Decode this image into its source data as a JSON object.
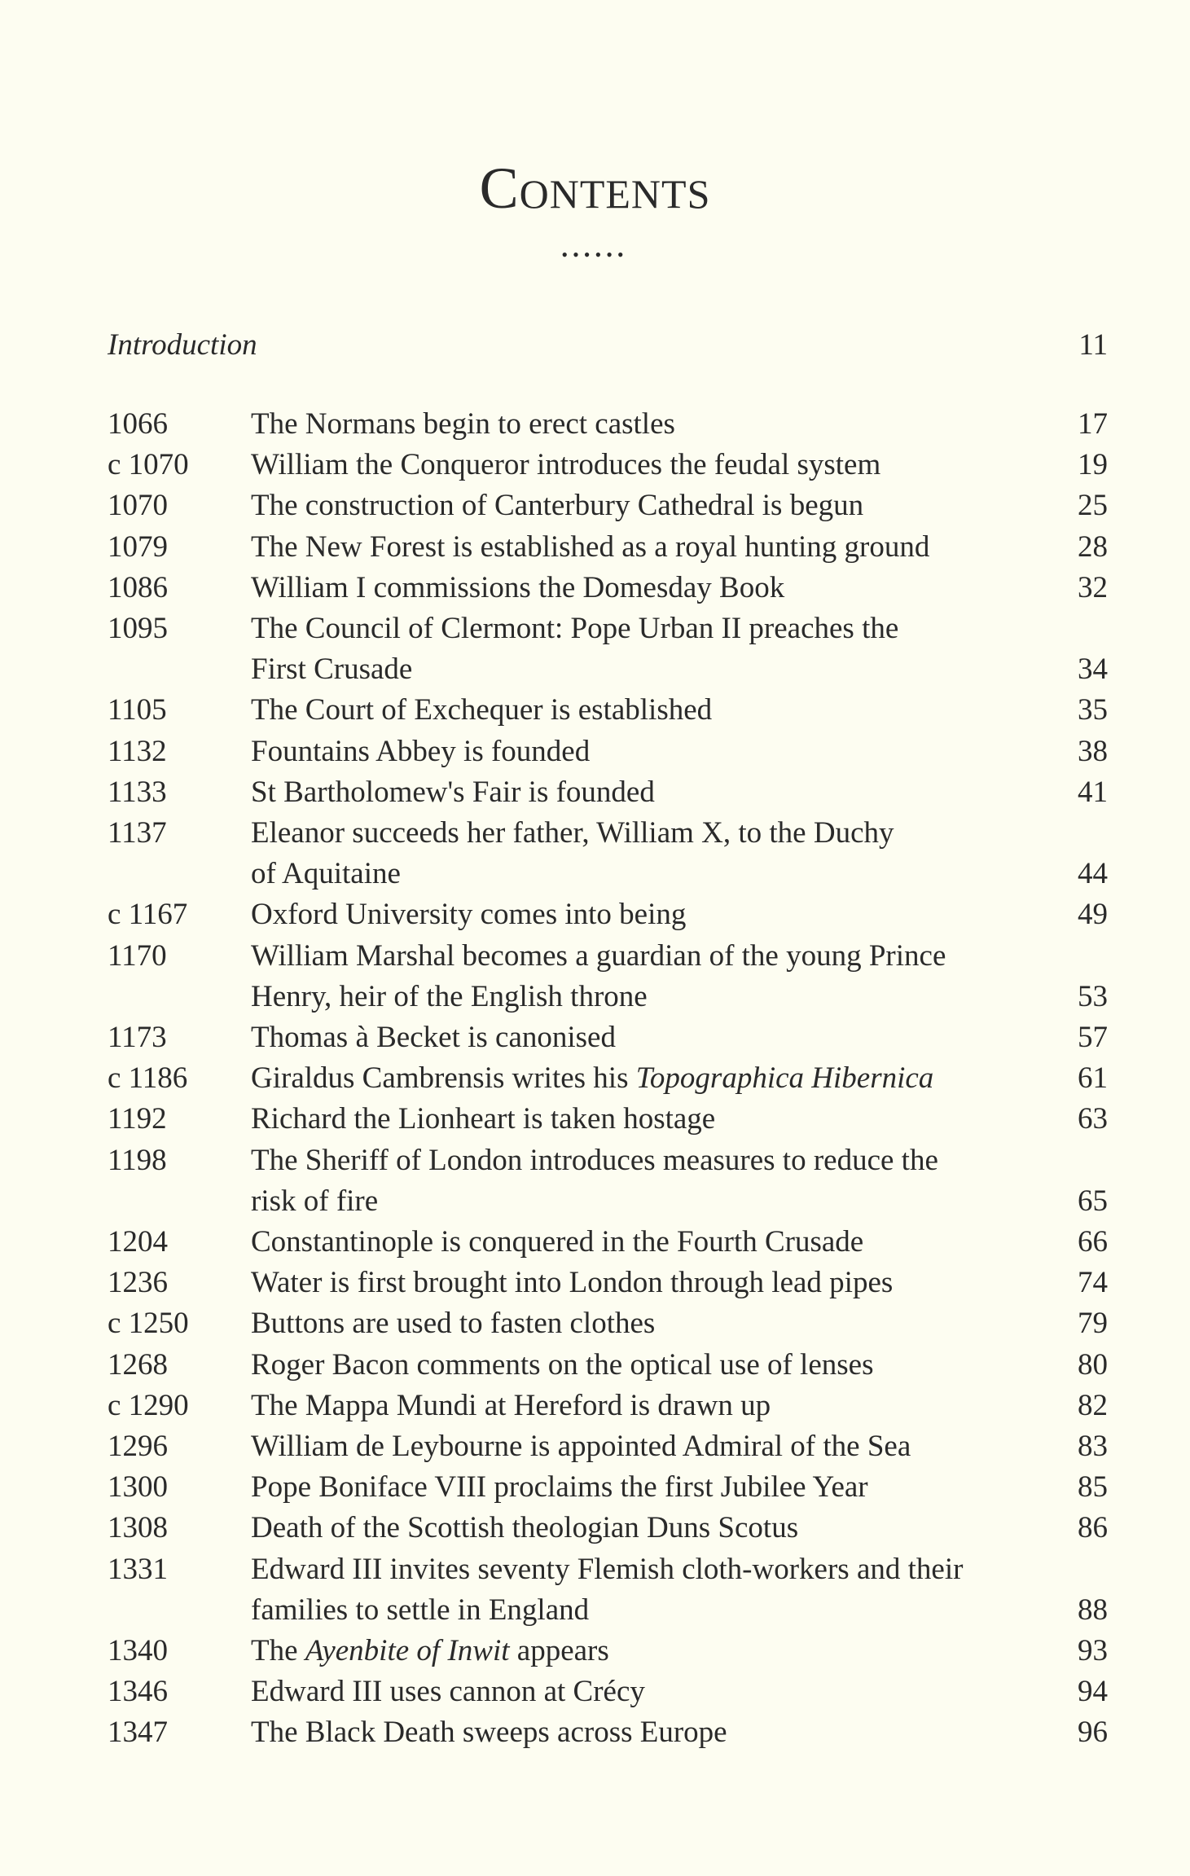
{
  "heading": "Contents",
  "ornament": "••••••",
  "introduction": {
    "label": "Introduction",
    "page": "11"
  },
  "entries": [
    {
      "date": "1066",
      "lines": [
        [
          {
            "t": "The Normans begin to erect castles"
          }
        ]
      ],
      "page": "17"
    },
    {
      "date": "c 1070",
      "lines": [
        [
          {
            "t": "William the Conqueror introduces the feudal system"
          }
        ]
      ],
      "page": "19"
    },
    {
      "date": "1070",
      "lines": [
        [
          {
            "t": "The construction of Canterbury Cathedral is begun"
          }
        ]
      ],
      "page": "25"
    },
    {
      "date": "1079",
      "lines": [
        [
          {
            "t": "The New Forest is established as a royal hunting ground"
          }
        ]
      ],
      "page": "28"
    },
    {
      "date": "1086",
      "lines": [
        [
          {
            "t": "William I commissions the Domesday Book"
          }
        ]
      ],
      "page": "32"
    },
    {
      "date": "1095",
      "lines": [
        [
          {
            "t": "The Council of Clermont: Pope Urban II preaches the"
          }
        ],
        [
          {
            "t": "First Crusade"
          }
        ]
      ],
      "page": "34"
    },
    {
      "date": "1105",
      "lines": [
        [
          {
            "t": "The Court of Exchequer is established"
          }
        ]
      ],
      "page": "35"
    },
    {
      "date": "1132",
      "lines": [
        [
          {
            "t": "Fountains Abbey is founded"
          }
        ]
      ],
      "page": "38"
    },
    {
      "date": "1133",
      "lines": [
        [
          {
            "t": "St Bartholomew's Fair is founded"
          }
        ]
      ],
      "page": "41"
    },
    {
      "date": "1137",
      "lines": [
        [
          {
            "t": "Eleanor succeeds her father, William X, to the Duchy"
          }
        ],
        [
          {
            "t": "of Aquitaine"
          }
        ]
      ],
      "page": "44"
    },
    {
      "date": "c 1167",
      "lines": [
        [
          {
            "t": "Oxford University comes into being"
          }
        ]
      ],
      "page": "49"
    },
    {
      "date": "1170",
      "lines": [
        [
          {
            "t": "William Marshal becomes a guardian of the young Prince"
          }
        ],
        [
          {
            "t": "Henry, heir of the English throne"
          }
        ]
      ],
      "page": "53"
    },
    {
      "date": "1173",
      "lines": [
        [
          {
            "t": "Thomas à Becket is canonised"
          }
        ]
      ],
      "page": "57"
    },
    {
      "date": "c 1186",
      "lines": [
        [
          {
            "t": "Giraldus Cambrensis writes his "
          },
          {
            "t": "Topographica Hibernica",
            "i": true
          }
        ]
      ],
      "page": "61"
    },
    {
      "date": "1192",
      "lines": [
        [
          {
            "t": "Richard the Lionheart is taken hostage"
          }
        ]
      ],
      "page": "63"
    },
    {
      "date": "1198",
      "lines": [
        [
          {
            "t": "The Sheriff of London introduces measures to reduce the"
          }
        ],
        [
          {
            "t": "risk of fire"
          }
        ]
      ],
      "page": "65"
    },
    {
      "date": "1204",
      "lines": [
        [
          {
            "t": "Constantinople is conquered in the Fourth Crusade"
          }
        ]
      ],
      "page": "66"
    },
    {
      "date": "1236",
      "lines": [
        [
          {
            "t": "Water is first brought into London through lead pipes"
          }
        ]
      ],
      "page": "74"
    },
    {
      "date": "c 1250",
      "lines": [
        [
          {
            "t": "Buttons are used to fasten clothes"
          }
        ]
      ],
      "page": "79"
    },
    {
      "date": "1268",
      "lines": [
        [
          {
            "t": "Roger Bacon comments on the optical use of lenses"
          }
        ]
      ],
      "page": "80"
    },
    {
      "date": "c 1290",
      "lines": [
        [
          {
            "t": "The Mappa Mundi at Hereford is drawn up"
          }
        ]
      ],
      "page": "82"
    },
    {
      "date": "1296",
      "lines": [
        [
          {
            "t": "William de Leybourne is appointed Admiral of the Sea"
          }
        ]
      ],
      "page": "83"
    },
    {
      "date": "1300",
      "lines": [
        [
          {
            "t": "Pope Boniface VIII proclaims the first Jubilee Year"
          }
        ]
      ],
      "page": "85"
    },
    {
      "date": "1308",
      "lines": [
        [
          {
            "t": "Death of the Scottish theologian Duns Scotus"
          }
        ]
      ],
      "page": "86"
    },
    {
      "date": "1331",
      "lines": [
        [
          {
            "t": "Edward III invites seventy Flemish cloth-workers and their"
          }
        ],
        [
          {
            "t": "families to settle in England"
          }
        ]
      ],
      "page": "88"
    },
    {
      "date": "1340",
      "lines": [
        [
          {
            "t": "The "
          },
          {
            "t": "Ayenbite of Inwit",
            "i": true
          },
          {
            "t": " appears"
          }
        ]
      ],
      "page": "93"
    },
    {
      "date": "1346",
      "lines": [
        [
          {
            "t": "Edward III uses cannon at Crécy"
          }
        ]
      ],
      "page": "94"
    },
    {
      "date": "1347",
      "lines": [
        [
          {
            "t": "The Black Death sweeps across Europe"
          }
        ]
      ],
      "page": "96"
    }
  ]
}
